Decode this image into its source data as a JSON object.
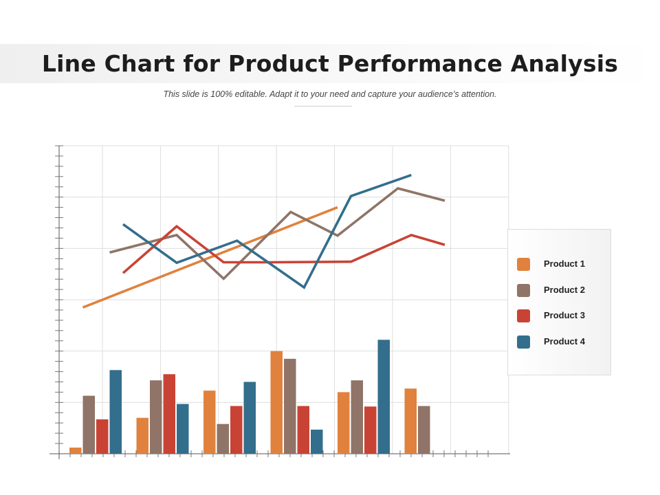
{
  "header": {
    "title": "Line Chart for Product Performance Analysis",
    "subtitle": "This slide is 100% editable. Adapt it to your need and capture your audience’s attention."
  },
  "colors": {
    "product_1": "#e0823d",
    "product_2": "#8f7467",
    "product_3": "#c94335",
    "product_4": "#336e8c",
    "grid": "#dddddd",
    "axis": "#555555"
  },
  "legend": {
    "placement": "right",
    "items": [
      {
        "label": "Product 1",
        "color": "#e0823d"
      },
      {
        "label": "Product 2",
        "color": "#8f7467"
      },
      {
        "label": "Product 3",
        "color": "#c94335"
      },
      {
        "label": "Product 4",
        "color": "#336e8c"
      }
    ]
  },
  "chart_data": {
    "type": "bar",
    "title": "Line Chart for Product Performance Analysis",
    "grid": true,
    "axes_labels_shown": false,
    "ylim": [
      0,
      60
    ],
    "groups": 6,
    "series": [
      {
        "name": "Product 1",
        "color": "#e0823d",
        "bars": [
          1.2,
          7,
          12.3,
          20,
          12,
          12.7
        ],
        "line": [
          [
            0.2,
            28.5
          ],
          [
            4.0,
            48
          ]
        ]
      },
      {
        "name": "Product 2",
        "color": "#8f7467",
        "bars": [
          11.3,
          14.3,
          5.8,
          18.5,
          14.3,
          9.3
        ],
        "line": [
          [
            0.6,
            39.2
          ],
          [
            1.6,
            42.6
          ],
          [
            2.3,
            34.1
          ],
          [
            3.3,
            47.1
          ],
          [
            4.0,
            42.5
          ],
          [
            4.9,
            51.7
          ],
          [
            5.6,
            49.3
          ]
        ]
      },
      {
        "name": "Product 3",
        "color": "#c94335",
        "bars": [
          6.7,
          15.5,
          9.3,
          9.3,
          9.2,
          null
        ],
        "line": [
          [
            0.8,
            35.2
          ],
          [
            1.6,
            44.3
          ],
          [
            2.3,
            37.3
          ],
          [
            3.0,
            37.3
          ],
          [
            4.2,
            37.4
          ],
          [
            5.1,
            42.6
          ],
          [
            5.6,
            40.7
          ]
        ]
      },
      {
        "name": "Product 4",
        "color": "#336e8c",
        "bars": [
          16.3,
          9.7,
          14,
          4.7,
          22.2,
          null
        ],
        "line": [
          [
            0.8,
            44.7
          ],
          [
            1.6,
            37.2
          ],
          [
            2.5,
            41.5
          ],
          [
            3.5,
            32.4
          ],
          [
            4.2,
            50.2
          ],
          [
            5.1,
            54.3
          ]
        ]
      }
    ]
  }
}
